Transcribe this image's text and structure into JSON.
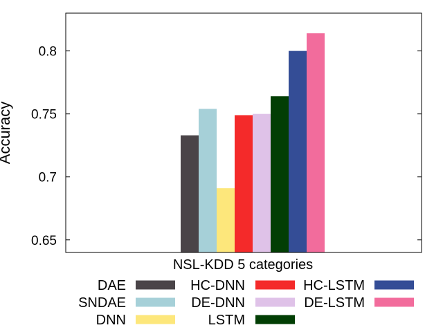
{
  "chart_data": {
    "type": "bar",
    "xlabel": "NSL-KDD 5 categories",
    "ylabel": "Accuracy",
    "ylim": [
      0.64,
      0.83
    ],
    "yticks": [
      0.65,
      0.7,
      0.75,
      0.8
    ],
    "ytick_labels": [
      "0.65",
      "0.7",
      "0.75",
      "0.8"
    ],
    "grid": false,
    "legend_position": "bottom",
    "series": [
      {
        "name": "DAE",
        "value": 0.733,
        "color": "#4a4448"
      },
      {
        "name": "SNDAE",
        "value": 0.754,
        "color": "#a6d0d8"
      },
      {
        "name": "DNN",
        "value": 0.691,
        "color": "#fde77b"
      },
      {
        "name": "HC-DNN",
        "value": 0.749,
        "color": "#f42a2a"
      },
      {
        "name": "DE-DNN",
        "value": 0.75,
        "color": "#dfc2e8"
      },
      {
        "name": "LSTM",
        "value": 0.764,
        "color": "#023e04"
      },
      {
        "name": "HC-LSTM",
        "value": 0.8,
        "color": "#344d96"
      },
      {
        "name": "DE-LSTM",
        "value": 0.814,
        "color": "#f26c9c"
      }
    ]
  }
}
